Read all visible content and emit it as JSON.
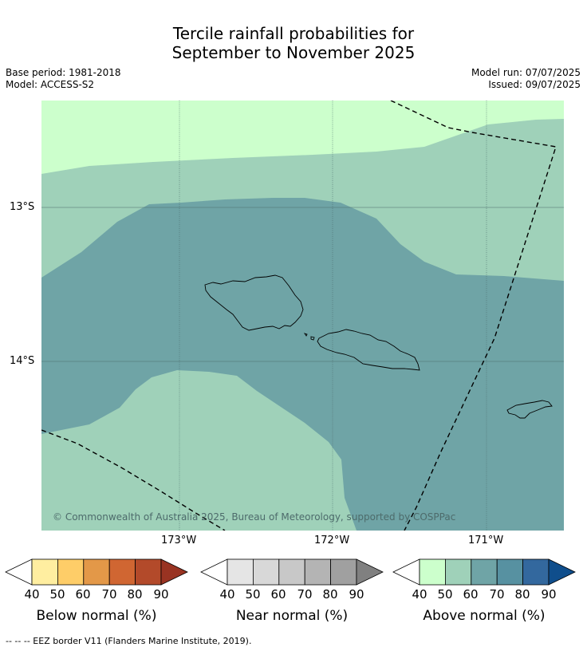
{
  "title_line1": "Tercile rainfall probabilities for",
  "title_line2": "September to November 2025",
  "base_period": "Base period: 1981-2018",
  "model": "Model: ACCESS-S2",
  "model_run": "Model run: 07/07/2025",
  "issued": "Issued: 09/07/2025",
  "copyright": "© Commonwealth of Australia 2025, Bureau of Meteorology, supported by COSPPac",
  "lat_labels": [
    "13°S",
    "14°S"
  ],
  "lon_labels": [
    "173°W",
    "172°W",
    "171°W"
  ],
  "colors": {
    "above_40_50": "#ccffcc",
    "above_50_60": "#9fd1b9",
    "above_60_70": "#6fa4a6",
    "above_70_80": "#5791a1",
    "above_80_90": "#33689e",
    "above_90": "#0f4e8c",
    "below_40_50": "#ffeea0",
    "below_50_60": "#fecd68",
    "below_60_70": "#e39848",
    "below_70_80": "#d06632",
    "below_80_90": "#b34a2a",
    "below_90": "#993322",
    "near_40_50": "#e5e5e5",
    "near_50_60": "#d8d8d8",
    "near_60_70": "#c8c8c8",
    "near_70_80": "#b4b4b4",
    "near_80_90": "#a0a0a0",
    "near_90": "#808080"
  },
  "colorbars": [
    {
      "label": "Below normal (%)",
      "ticks": [
        "40",
        "50",
        "60",
        "70",
        "80",
        "90"
      ]
    },
    {
      "label": "Near normal (%)",
      "ticks": [
        "40",
        "50",
        "60",
        "70",
        "80",
        "90"
      ]
    },
    {
      "label": "Above normal (%)",
      "ticks": [
        "40",
        "50",
        "60",
        "70",
        "80",
        "90"
      ]
    }
  ],
  "footnote": "--  --  -- EEZ border V11 (Flanders Marine Institute, 2019)."
}
